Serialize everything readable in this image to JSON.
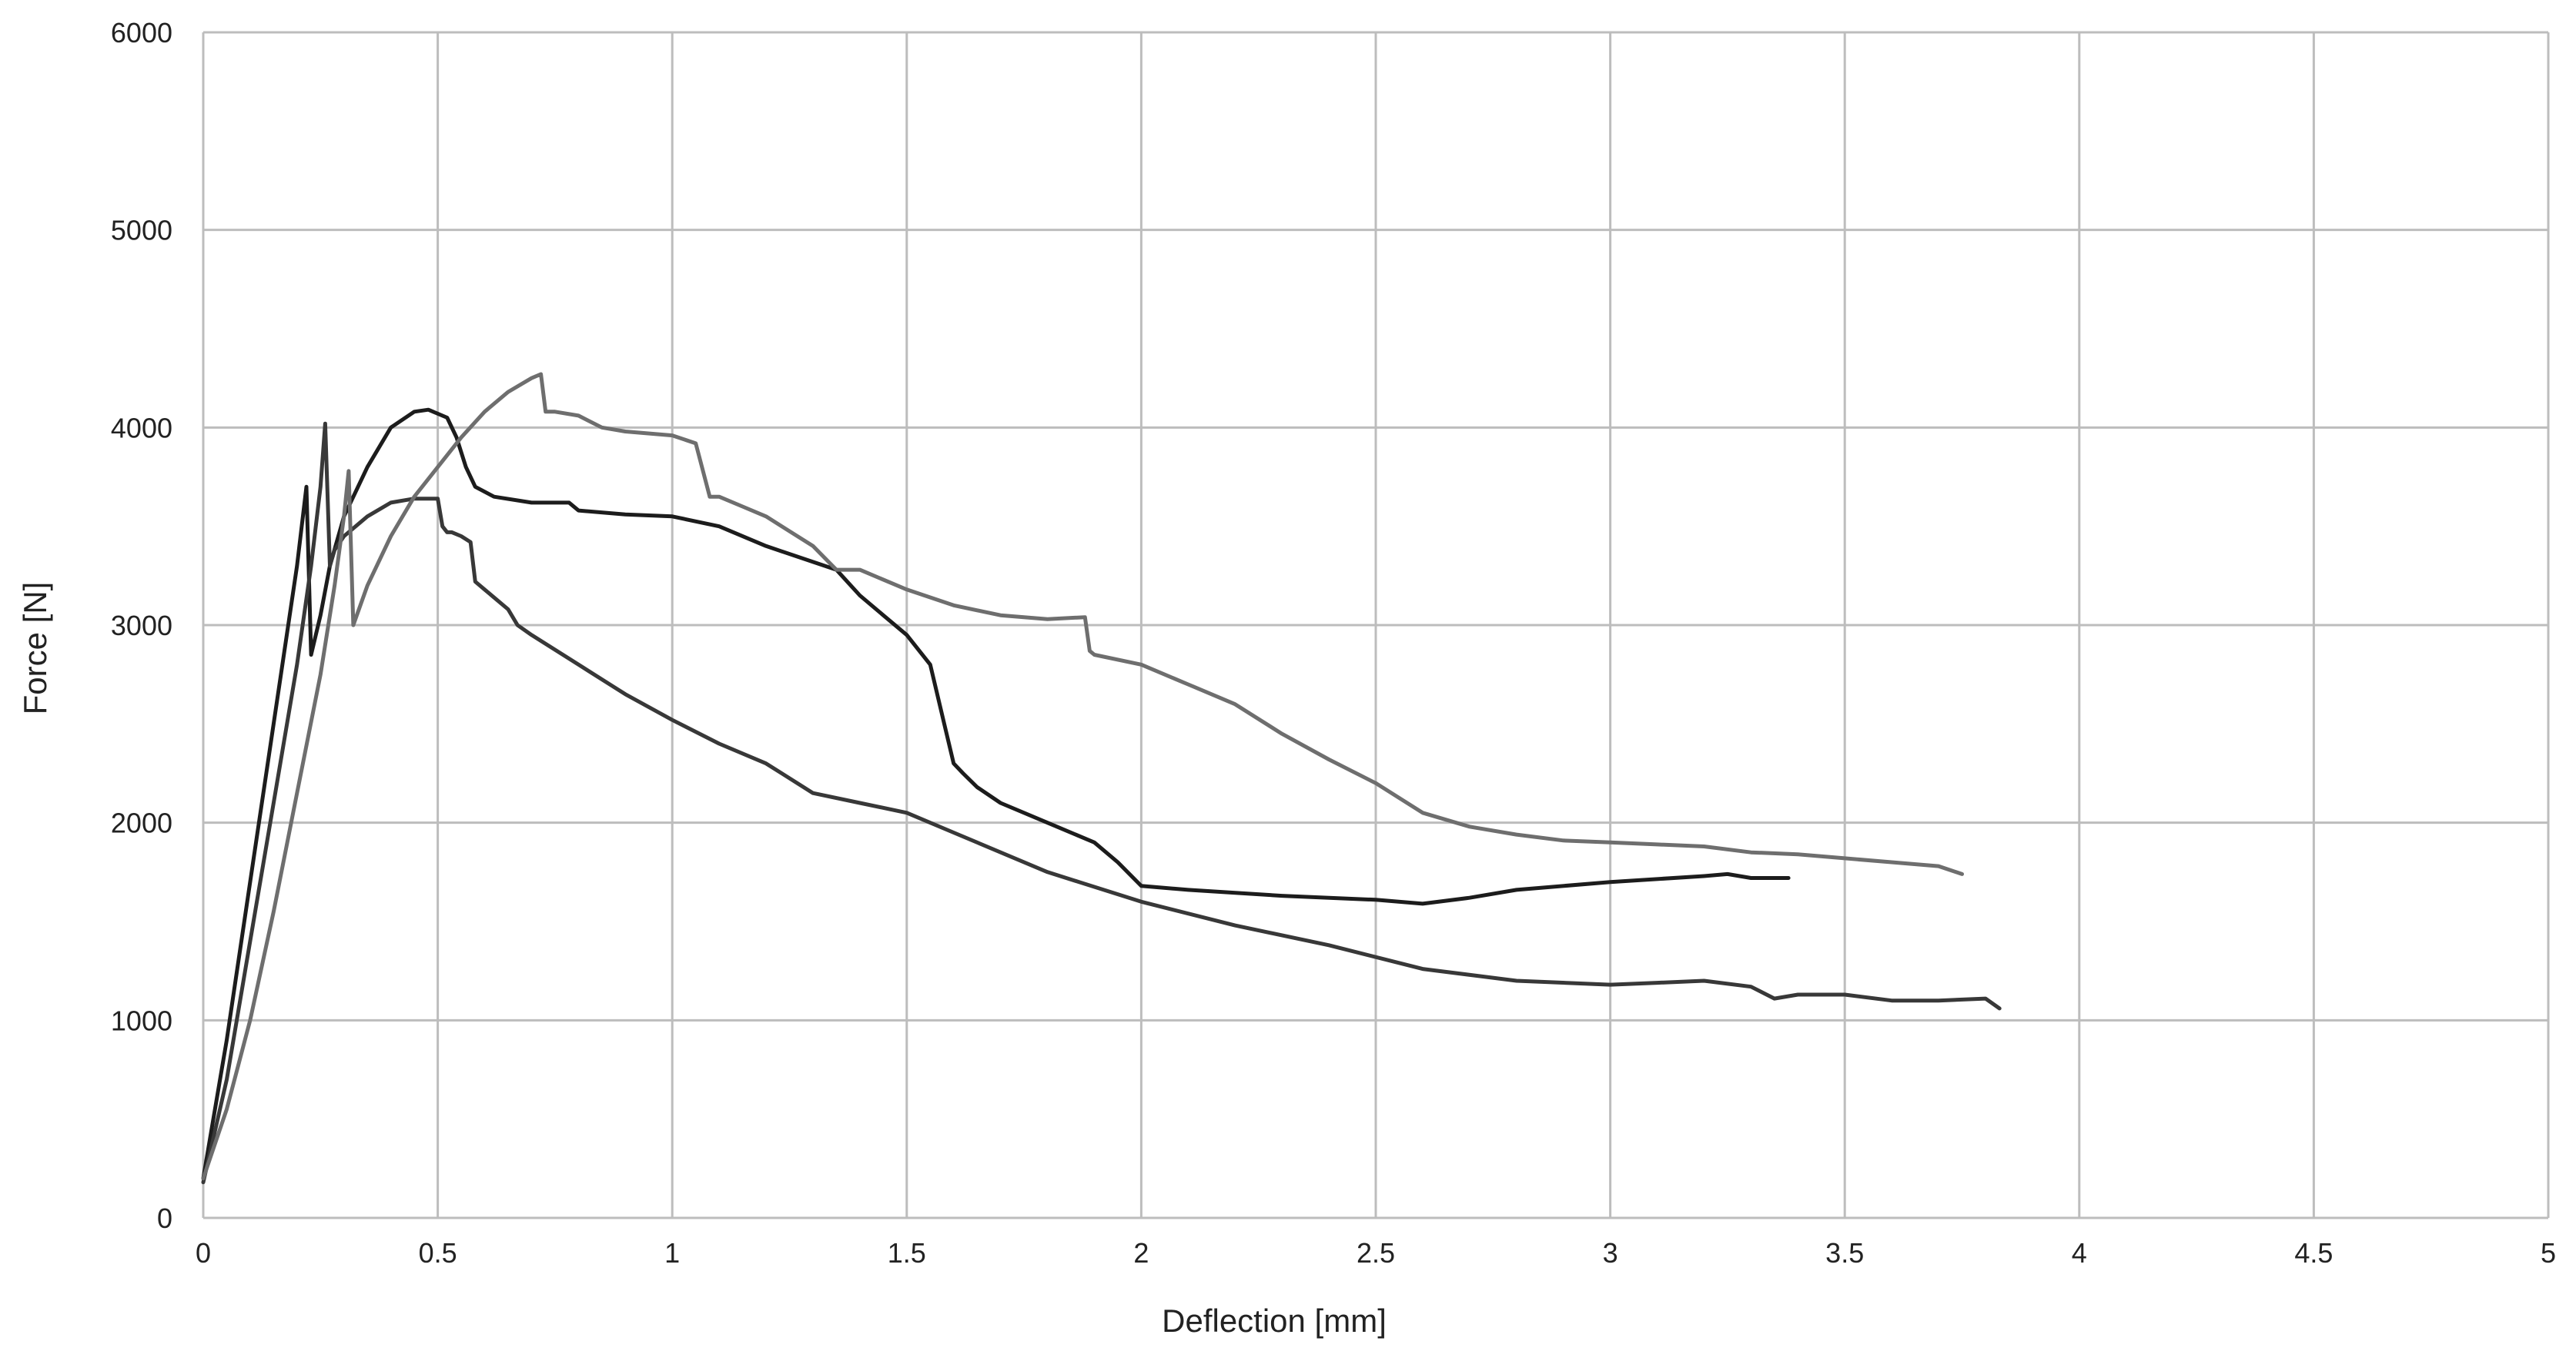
{
  "chart_data": {
    "type": "line",
    "title": "",
    "xlabel": "Deflection [mm]",
    "ylabel": "Force [N]",
    "xlim": [
      0,
      5
    ],
    "ylim": [
      0,
      6000
    ],
    "x_ticks": [
      "0",
      "0.5",
      "1",
      "1.5",
      "2",
      "2.5",
      "3",
      "3.5",
      "4",
      "4.5",
      "5"
    ],
    "y_ticks": [
      "0",
      "1000",
      "2000",
      "3000",
      "4000",
      "5000",
      "6000"
    ],
    "grid": true,
    "legend": "none",
    "colors": {
      "gridline": "#bdbdbd",
      "series_a": "#1c1c1c",
      "series_b": "#383838",
      "series_c": "#6e6e6e"
    },
    "series": [
      {
        "color_key": "series_a",
        "x": [
          0,
          0.05,
          0.1,
          0.15,
          0.2,
          0.22,
          0.23,
          0.25,
          0.27,
          0.3,
          0.35,
          0.4,
          0.45,
          0.48,
          0.52,
          0.54,
          0.56,
          0.58,
          0.62,
          0.7,
          0.78,
          0.8,
          0.9,
          1.0,
          1.1,
          1.2,
          1.3,
          1.35,
          1.4,
          1.45,
          1.5,
          1.55,
          1.58,
          1.6,
          1.62,
          1.65,
          1.7,
          1.8,
          1.9,
          1.95,
          2.0,
          2.1,
          2.3,
          2.5,
          2.6,
          2.7,
          2.8,
          3.0,
          3.2,
          3.25,
          3.3,
          3.38
        ],
        "y": [
          200,
          900,
          1700,
          2500,
          3300,
          3700,
          2850,
          3050,
          3300,
          3550,
          3800,
          4000,
          4080,
          4090,
          4050,
          3950,
          3800,
          3700,
          3650,
          3620,
          3620,
          3580,
          3560,
          3550,
          3500,
          3400,
          3320,
          3280,
          3150,
          3050,
          2950,
          2800,
          2500,
          2300,
          2250,
          2180,
          2100,
          2000,
          1900,
          1800,
          1680,
          1660,
          1630,
          1610,
          1590,
          1620,
          1660,
          1700,
          1730,
          1740,
          1720,
          1720
        ]
      },
      {
        "color_key": "series_b",
        "x": [
          0,
          0.05,
          0.1,
          0.15,
          0.2,
          0.23,
          0.25,
          0.26,
          0.27,
          0.28,
          0.3,
          0.35,
          0.4,
          0.45,
          0.5,
          0.51,
          0.52,
          0.53,
          0.55,
          0.57,
          0.58,
          0.6,
          0.65,
          0.67,
          0.7,
          0.8,
          0.9,
          1.0,
          1.1,
          1.2,
          1.3,
          1.4,
          1.5,
          1.6,
          1.8,
          2.0,
          2.2,
          2.4,
          2.6,
          2.8,
          3.0,
          3.1,
          3.2,
          3.3,
          3.35,
          3.4,
          3.5,
          3.6,
          3.7,
          3.8,
          3.83
        ],
        "y": [
          180,
          700,
          1400,
          2100,
          2800,
          3300,
          3700,
          4020,
          3300,
          3380,
          3450,
          3550,
          3620,
          3640,
          3640,
          3500,
          3470,
          3470,
          3450,
          3420,
          3220,
          3180,
          3080,
          3000,
          2950,
          2800,
          2650,
          2520,
          2400,
          2300,
          2150,
          2100,
          2050,
          1950,
          1750,
          1600,
          1480,
          1380,
          1260,
          1200,
          1180,
          1190,
          1200,
          1170,
          1110,
          1130,
          1130,
          1100,
          1100,
          1110,
          1060
        ]
      },
      {
        "color_key": "series_c",
        "x": [
          0,
          0.05,
          0.1,
          0.15,
          0.2,
          0.25,
          0.28,
          0.3,
          0.31,
          0.32,
          0.35,
          0.4,
          0.45,
          0.5,
          0.55,
          0.6,
          0.65,
          0.7,
          0.72,
          0.73,
          0.75,
          0.8,
          0.85,
          0.9,
          1.0,
          1.05,
          1.08,
          1.1,
          1.15,
          1.2,
          1.3,
          1.35,
          1.4,
          1.5,
          1.6,
          1.7,
          1.8,
          1.88,
          1.89,
          1.9,
          2.0,
          2.1,
          2.2,
          2.3,
          2.4,
          2.5,
          2.6,
          2.7,
          2.8,
          2.9,
          3.0,
          3.1,
          3.2,
          3.3,
          3.4,
          3.5,
          3.6,
          3.7,
          3.75
        ],
        "y": [
          200,
          550,
          1000,
          1550,
          2150,
          2750,
          3200,
          3550,
          3780,
          3000,
          3200,
          3450,
          3650,
          3800,
          3950,
          4080,
          4180,
          4250,
          4270,
          4080,
          4080,
          4060,
          4000,
          3980,
          3960,
          3920,
          3650,
          3650,
          3600,
          3550,
          3400,
          3280,
          3280,
          3180,
          3100,
          3050,
          3030,
          3040,
          2870,
          2850,
          2800,
          2700,
          2600,
          2450,
          2320,
          2200,
          2050,
          1980,
          1940,
          1910,
          1900,
          1890,
          1880,
          1850,
          1840,
          1820,
          1800,
          1780,
          1740
        ]
      }
    ]
  }
}
